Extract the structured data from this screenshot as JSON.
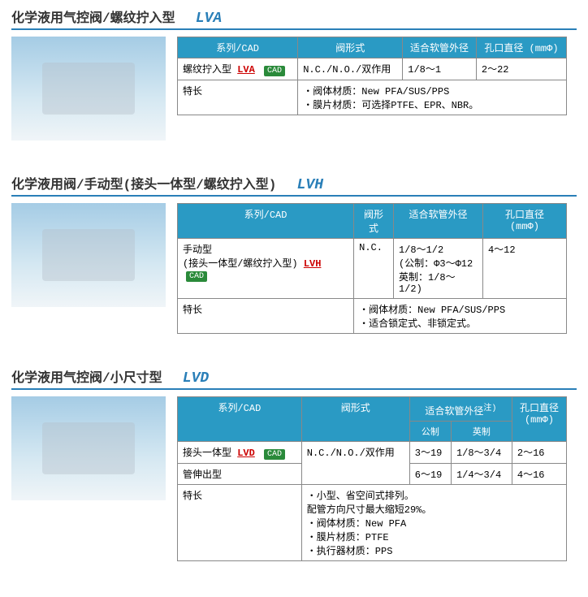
{
  "sections": [
    {
      "title": "化学液用气控阀/螺纹拧入型",
      "code": "LVA",
      "table": {
        "headers": [
          "系列/CAD",
          "阀形式",
          "适合软管外径",
          "孔口直径\n(mmΦ)"
        ],
        "row": {
          "type": "螺纹拧入型",
          "link": "LVA",
          "valve": "N.C./N.O./双作用",
          "tube": "1/8～1",
          "orifice": "2～22"
        },
        "features_label": "特长",
        "features": [
          "阀体材质：New PFA/SUS/PPS",
          "膜片材质：可选择PTFE、EPR、NBR。"
        ]
      }
    },
    {
      "title": "化学液用阀/手动型(接头一体型/螺纹拧入型)",
      "code": "LVH",
      "table": {
        "headers": [
          "系列/CAD",
          "阀形式",
          "适合软管外径",
          "孔口直径\n(mmΦ)"
        ],
        "row": {
          "type": "手动型\n(接头一体型/螺纹拧入型)",
          "link": "LVH",
          "valve": "N.C.",
          "tube": "1/8～1/2\n(公制：Φ3～Φ12\n英制：1/8～1/2)",
          "orifice": "4～12"
        },
        "features_label": "特长",
        "features": [
          "阀体材质：New PFA/SUS/PPS",
          "适合锁定式、非锁定式。"
        ]
      }
    },
    {
      "title": "化学液用气控阀/小尺寸型",
      "code": "LVD",
      "table": {
        "headers_top": [
          "系列/CAD",
          "阀形式",
          "适合软管外径",
          "孔口直径\n(mmΦ)"
        ],
        "subheaders": [
          "公制",
          "英制"
        ],
        "note": "注)",
        "rows": [
          {
            "type": "接头一体型",
            "link": "LVD",
            "valve": "N.C./N.O./双作用",
            "m": "3～19",
            "i": "1/8～3/4",
            "o": "2～16"
          },
          {
            "type": "管伸出型",
            "m": "6～19",
            "i": "1/4～3/4",
            "o": "4～16"
          }
        ],
        "features_label": "特长",
        "features": [
          "小型、省空间式排列。\n配管方向尺寸最大缩短29%。",
          "阀体材质：New PFA",
          "膜片材质：PTFE",
          "执行器材质：PPS"
        ]
      }
    }
  ],
  "cad_label": "CAD",
  "colors": {
    "header_bg": "#2a9ac4",
    "accent": "#2a7fb8",
    "link": "#cc0000",
    "cad": "#2a8a3a"
  }
}
